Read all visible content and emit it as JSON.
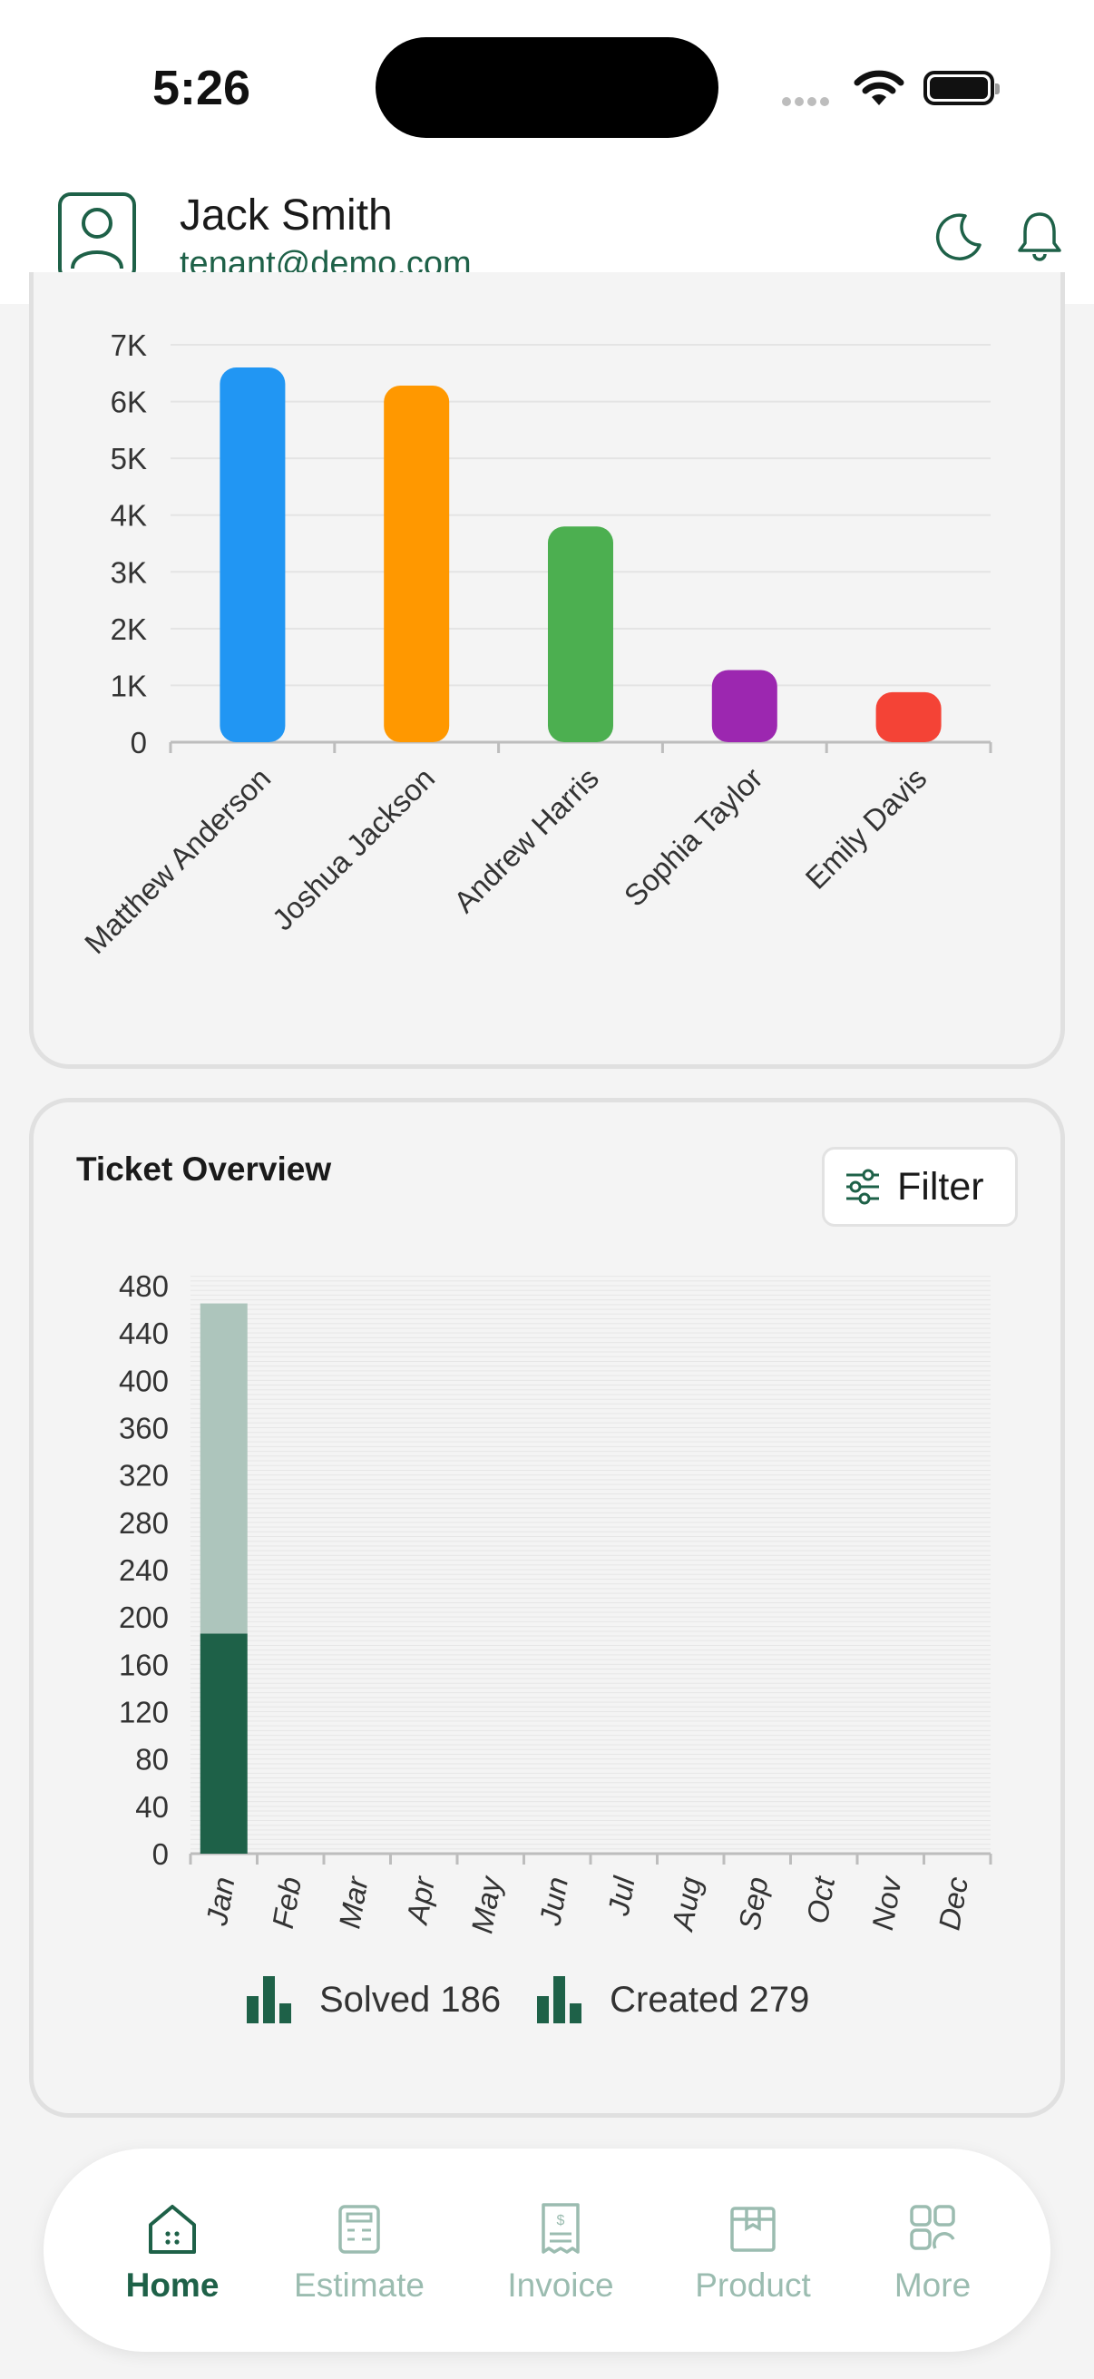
{
  "status_bar": {
    "time": "5:26"
  },
  "header": {
    "name": "Jack Smith",
    "email": "tenant@demo.com",
    "icons": [
      "moon-icon",
      "bell-icon",
      "user-avatar-icon"
    ]
  },
  "colors": {
    "primary": "#1e6148",
    "primary_light": "#adc5bc",
    "nav_inactive": "#9bbcb0"
  },
  "chart_data": [
    {
      "type": "bar",
      "categories": [
        "Matthew Anderson",
        "Joshua Jackson",
        "Andrew Harris",
        "Sophia Taylor",
        "Emily Davis"
      ],
      "values": [
        6600,
        6280,
        3800,
        1270,
        880
      ],
      "colors": [
        "#2196f3",
        "#ff9800",
        "#4caf50",
        "#9c27b0",
        "#f44336"
      ],
      "yticks": [
        "0",
        "1K",
        "2K",
        "3K",
        "4K",
        "5K",
        "6K",
        "7K"
      ],
      "ylim": [
        0,
        7000
      ],
      "grid": true
    },
    {
      "type": "bar",
      "title": "Ticket Overview",
      "categories": [
        "Jan",
        "Feb",
        "Mar",
        "Apr",
        "May",
        "Jun",
        "Jul",
        "Aug",
        "Sep",
        "Oct",
        "Nov",
        "Dec"
      ],
      "series": [
        {
          "name": "Solved",
          "values": [
            186,
            0,
            0,
            0,
            0,
            0,
            0,
            0,
            0,
            0,
            0,
            0
          ],
          "color": "#1e6148"
        },
        {
          "name": "Created",
          "values": [
            279,
            0,
            0,
            0,
            0,
            0,
            0,
            0,
            0,
            0,
            0,
            0
          ],
          "color": "#adc5bc"
        }
      ],
      "stacked": true,
      "yticks": [
        "0",
        "40",
        "80",
        "120",
        "160",
        "200",
        "240",
        "280",
        "320",
        "360",
        "400",
        "440",
        "480"
      ],
      "ylim": [
        0,
        480
      ],
      "grid": true,
      "legend": [
        "Solved 186",
        "Created 279"
      ],
      "legend_position": "bottom"
    }
  ],
  "ticket": {
    "title": "Ticket Overview",
    "filter_label": "Filter",
    "legend_solved": "Solved 186",
    "legend_created": "Created 279"
  },
  "nav": {
    "items": [
      {
        "label": "Home",
        "icon": "home-icon",
        "active": true
      },
      {
        "label": "Estimate",
        "icon": "estimate-icon",
        "active": false
      },
      {
        "label": "Invoice",
        "icon": "invoice-icon",
        "active": false
      },
      {
        "label": "Product",
        "icon": "product-icon",
        "active": false
      },
      {
        "label": "More",
        "icon": "more-icon",
        "active": false
      }
    ]
  }
}
